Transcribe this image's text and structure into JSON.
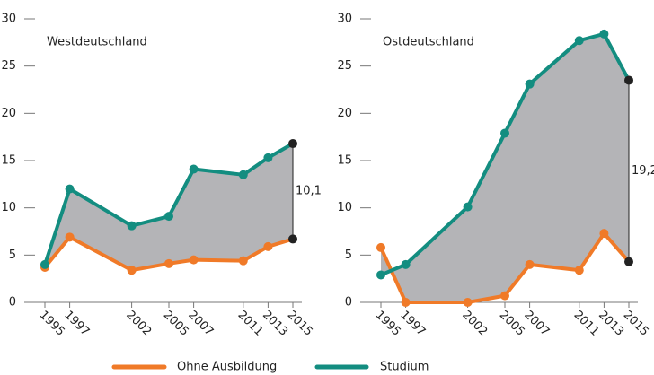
{
  "chart_data": [
    {
      "type": "line",
      "title": "Westdeutschland",
      "x": [
        1995,
        1997,
        2002,
        2005,
        2007,
        2011,
        2013,
        2015
      ],
      "xlim": [
        1995,
        2015
      ],
      "xticks": [
        1995,
        1997,
        2002,
        2005,
        2007,
        2011,
        2013,
        2015
      ],
      "ylim": [
        0,
        30
      ],
      "yticks": [
        0,
        5,
        10,
        15,
        20,
        25,
        30
      ],
      "series": [
        {
          "name": "Ohne Ausbildung",
          "color": "#f07a28",
          "values": [
            3.7,
            6.9,
            3.4,
            4.1,
            4.5,
            4.4,
            5.9,
            6.7
          ]
        },
        {
          "name": "Studium",
          "color": "#138d80",
          "values": [
            4.0,
            12.0,
            8.1,
            9.1,
            14.1,
            13.5,
            15.3,
            16.8
          ]
        }
      ],
      "annotation": "10,1"
    },
    {
      "type": "line",
      "title": "Ostdeutschland",
      "x": [
        1995,
        1997,
        2002,
        2005,
        2007,
        2011,
        2013,
        2015
      ],
      "xlim": [
        1995,
        2015
      ],
      "xticks": [
        1995,
        1997,
        2002,
        2005,
        2007,
        2011,
        2013,
        2015
      ],
      "ylim": [
        0,
        30
      ],
      "yticks": [
        0,
        5,
        10,
        15,
        20,
        25,
        30
      ],
      "series": [
        {
          "name": "Ohne Ausbildung",
          "color": "#f07a28",
          "values": [
            5.8,
            0,
            0,
            0.7,
            4.0,
            3.4,
            7.3,
            4.3
          ]
        },
        {
          "name": "Studium",
          "color": "#138d80",
          "values": [
            2.9,
            4.0,
            10.1,
            17.9,
            23.1,
            27.7,
            28.4,
            23.5
          ]
        }
      ],
      "annotation": "19,2"
    }
  ]
}
